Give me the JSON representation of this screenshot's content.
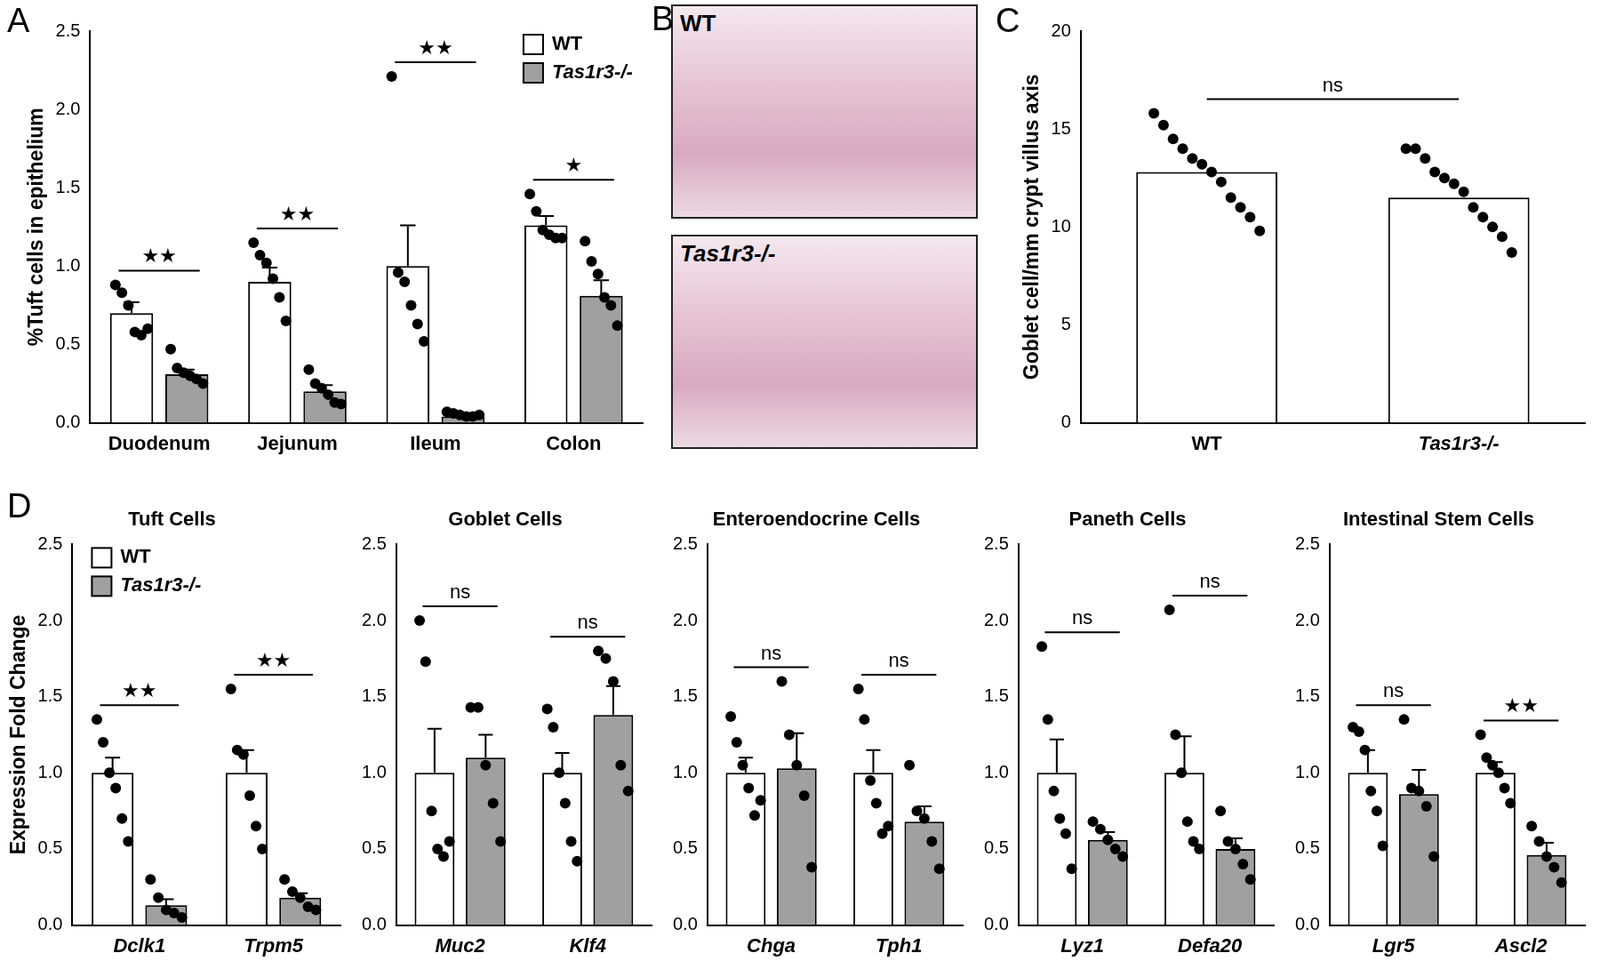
{
  "chart_data": [
    {
      "panel": "A",
      "type": "bar",
      "y_label": "%Tuft cells in epithelium",
      "categories": [
        "Duodenum",
        "Jejunum",
        "Ileum",
        "Colon"
      ],
      "series": [
        {
          "name": "WT",
          "color": "#ffffff",
          "values": [
            0.7,
            0.9,
            1.0,
            1.26
          ],
          "errors": [
            0.07,
            0.09,
            0.26,
            0.06
          ],
          "points": [
            [
              0.88,
              0.83,
              0.75,
              0.58,
              0.56,
              0.6
            ],
            [
              1.15,
              1.07,
              1.02,
              0.92,
              0.8,
              0.65
            ],
            [
              2.21,
              0.96,
              0.9,
              0.75,
              0.63,
              0.52
            ],
            [
              1.46,
              1.35,
              1.23,
              1.2,
              1.18,
              1.18
            ]
          ]
        },
        {
          "name": "Tas1r3-/-",
          "color": "#a0a0a0",
          "values": [
            0.31,
            0.2,
            0.04,
            0.81
          ],
          "errors": [
            0.03,
            0.04,
            0.01,
            0.1
          ],
          "points": [
            [
              0.47,
              0.35,
              0.32,
              0.3,
              0.28,
              0.25
            ],
            [
              0.34,
              0.25,
              0.22,
              0.18,
              0.13,
              0.12
            ],
            [
              0.07,
              0.06,
              0.05,
              0.04,
              0.04,
              0.05
            ],
            [
              1.16,
              1.03,
              0.95,
              0.8,
              0.75,
              0.62
            ]
          ]
        }
      ],
      "significance": [
        "★★",
        "★★",
        "★★",
        "★"
      ],
      "ylim": [
        0,
        2.5
      ],
      "yticks": [
        {
          "value": 0,
          "label": "0.0"
        },
        0.5,
        {
          "value": 1,
          "label": "1.0"
        },
        1.5,
        {
          "value": 2,
          "label": "2.0"
        },
        2.5
      ],
      "legend": "top-right"
    },
    {
      "panel": "B",
      "type": "image",
      "labels": [
        "WT",
        "Tas1r3-/-"
      ]
    },
    {
      "panel": "C",
      "type": "bar",
      "y_label": "Goblet cell/mm crypt villus axis",
      "categories": [
        "WT",
        "Tas1r3-/-"
      ],
      "values": [
        12.8,
        11.5
      ],
      "color": "#ffffff",
      "points": [
        [
          15.8,
          15.2,
          14.5,
          14.0,
          13.5,
          13.2,
          12.8,
          12.3,
          11.5,
          11.0,
          10.5,
          9.8
        ],
        [
          14.0,
          14.0,
          13.5,
          12.8,
          12.5,
          12.2,
          11.8,
          11.0,
          10.5,
          10.0,
          9.5,
          8.7
        ]
      ],
      "significance": [
        "ns"
      ],
      "ylim": [
        0,
        20
      ],
      "yticks": [
        0,
        5,
        10,
        15,
        20
      ]
    },
    {
      "panel": "D",
      "type": "bar",
      "title": "Tuft Cells",
      "y_label": "Expression Fold Change",
      "categories": [
        "Dclk1",
        "Trpm5"
      ],
      "series": [
        {
          "name": "WT",
          "color": "#ffffff",
          "values": [
            1.0,
            1.0
          ],
          "errors": [
            0.1,
            0.15
          ],
          "points": [
            [
              1.35,
              1.2,
              1.0,
              0.9,
              0.7,
              0.55
            ],
            [
              1.55,
              1.15,
              1.12,
              0.85,
              0.65,
              0.5
            ]
          ]
        },
        {
          "name": "Tas1r3-/-",
          "color": "#a0a0a0",
          "values": [
            0.13,
            0.18
          ],
          "errors": [
            0.04,
            0.03
          ],
          "points": [
            [
              0.3,
              0.18,
              0.1,
              0.08,
              0.05
            ],
            [
              0.3,
              0.22,
              0.18,
              0.12,
              0.1
            ]
          ]
        }
      ],
      "significance": [
        "★★",
        "★★"
      ],
      "ylim": [
        0,
        2.5
      ],
      "yticks": [
        {
          "value": 0,
          "label": "0.0"
        },
        0.5,
        {
          "value": 1,
          "label": "1.0"
        },
        1.5,
        {
          "value": 2,
          "label": "2.0"
        },
        2.5
      ],
      "legend": "top-left"
    },
    {
      "type": "bar",
      "title": "Goblet Cells",
      "categories": [
        "Muc2",
        "Klf4"
      ],
      "series": [
        {
          "name": "WT",
          "color": "#ffffff",
          "values": [
            1.0,
            1.0
          ],
          "errors": [
            0.29,
            0.13
          ],
          "points": [
            [
              2.0,
              1.73,
              0.75,
              0.5,
              0.45,
              0.55
            ],
            [
              1.42,
              1.3,
              1.0,
              0.8,
              0.55,
              0.42
            ]
          ]
        },
        {
          "name": "Tas1r3-/-",
          "color": "#a0a0a0",
          "values": [
            1.1,
            1.38
          ],
          "errors": [
            0.15,
            0.19
          ],
          "points": [
            [
              1.43,
              1.43,
              1.05,
              0.8,
              0.55
            ],
            [
              1.8,
              1.75,
              1.6,
              1.05,
              0.88
            ]
          ]
        }
      ],
      "significance": [
        "ns",
        "ns"
      ],
      "ylim": [
        0,
        2.5
      ],
      "yticks": [
        {
          "value": 0,
          "label": "0.0"
        },
        0.5,
        {
          "value": 1,
          "label": "1.0"
        },
        1.5,
        {
          "value": 2,
          "label": "2.0"
        },
        2.5
      ]
    },
    {
      "type": "bar",
      "title": "Enteroendocrine Cells",
      "categories": [
        "Chga",
        "Tph1"
      ],
      "series": [
        {
          "name": "WT",
          "color": "#ffffff",
          "values": [
            1.0,
            1.0
          ],
          "errors": [
            0.1,
            0.15
          ],
          "points": [
            [
              1.37,
              1.2,
              1.05,
              0.9,
              0.72,
              0.82
            ],
            [
              1.55,
              1.35,
              0.95,
              0.8,
              0.6,
              0.65
            ]
          ]
        },
        {
          "name": "Tas1r3-/-",
          "color": "#a0a0a0",
          "values": [
            1.03,
            0.68
          ],
          "errors": [
            0.23,
            0.1
          ],
          "points": [
            [
              1.6,
              1.25,
              1.05,
              0.85,
              0.38
            ],
            [
              1.05,
              0.75,
              0.7,
              0.55,
              0.37
            ]
          ]
        }
      ],
      "significance": [
        "ns",
        "ns"
      ],
      "ylim": [
        0,
        2.5
      ],
      "yticks": [
        {
          "value": 0,
          "label": "0.0"
        },
        0.5,
        {
          "value": 1,
          "label": "1.0"
        },
        1.5,
        {
          "value": 2,
          "label": "2.0"
        },
        2.5
      ]
    },
    {
      "type": "bar",
      "title": "Paneth Cells",
      "categories": [
        "Lyz1",
        "Defa20"
      ],
      "series": [
        {
          "name": "WT",
          "color": "#ffffff",
          "values": [
            1.0,
            1.0
          ],
          "errors": [
            0.22,
            0.24
          ],
          "points": [
            [
              1.83,
              1.35,
              0.88,
              0.7,
              0.6,
              0.37
            ],
            [
              2.07,
              1.25,
              1.0,
              0.68,
              0.55,
              0.5
            ]
          ]
        },
        {
          "name": "Tas1r3-/-",
          "color": "#a0a0a0",
          "values": [
            0.56,
            0.5
          ],
          "errors": [
            0.05,
            0.07
          ],
          "points": [
            [
              0.68,
              0.63,
              0.56,
              0.5,
              0.45
            ],
            [
              0.75,
              0.55,
              0.5,
              0.4,
              0.3
            ]
          ]
        }
      ],
      "significance": [
        "ns",
        "ns"
      ],
      "ylim": [
        0,
        2.5
      ],
      "yticks": [
        {
          "value": 0,
          "label": "0.0"
        },
        0.5,
        {
          "value": 1,
          "label": "1.0"
        },
        1.5,
        {
          "value": 2,
          "label": "2.0"
        },
        2.5
      ]
    },
    {
      "type": "bar",
      "title": "Intestinal Stem Cells",
      "categories": [
        "Lgr5",
        "Ascl2"
      ],
      "series": [
        {
          "name": "WT",
          "color": "#ffffff",
          "values": [
            1.0,
            1.0
          ],
          "errors": [
            0.15,
            0.07
          ],
          "points": [
            [
              1.3,
              1.27,
              1.15,
              0.88,
              0.75,
              0.52
            ],
            [
              1.25,
              1.1,
              1.05,
              1.0,
              0.9,
              0.8
            ]
          ]
        },
        {
          "name": "Tas1r3-/-",
          "color": "#a0a0a0",
          "values": [
            0.86,
            0.46
          ],
          "errors": [
            0.16,
            0.08
          ],
          "points": [
            [
              1.35,
              0.9,
              0.88,
              0.78,
              0.45
            ],
            [
              0.65,
              0.55,
              0.45,
              0.38,
              0.28
            ]
          ]
        }
      ],
      "significance": [
        "ns",
        "★★"
      ],
      "ylim": [
        0,
        2.5
      ],
      "yticks": [
        {
          "value": 0,
          "label": "0.0"
        },
        0.5,
        {
          "value": 1,
          "label": "1.0"
        },
        1.5,
        {
          "value": 2,
          "label": "2.0"
        },
        2.5
      ]
    }
  ]
}
